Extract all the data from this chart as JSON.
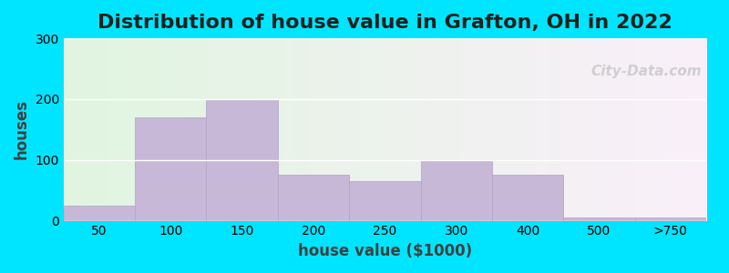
{
  "title": "Distribution of house value in Grafton, OH in 2022",
  "xlabel": "house value ($1000)",
  "ylabel": "houses",
  "bar_labels": [
    "50",
    "100",
    "150",
    "200",
    "250",
    "300",
    "400",
    "500",
    ">750"
  ],
  "bar_heights": [
    25,
    170,
    198,
    75,
    65,
    100,
    75,
    5,
    5
  ],
  "bar_color": "#c8b8d8",
  "bar_edge_color": "#b0a0c8",
  "ylim": [
    0,
    300
  ],
  "yticks": [
    0,
    100,
    200,
    300
  ],
  "background_outer": "#00e5ff",
  "background_plot_left": "#dff0d8",
  "background_plot_right": "#f8f0f8",
  "title_fontsize": 16,
  "axis_label_fontsize": 12,
  "watermark": "City-Data.com",
  "bar_width": 1.0
}
